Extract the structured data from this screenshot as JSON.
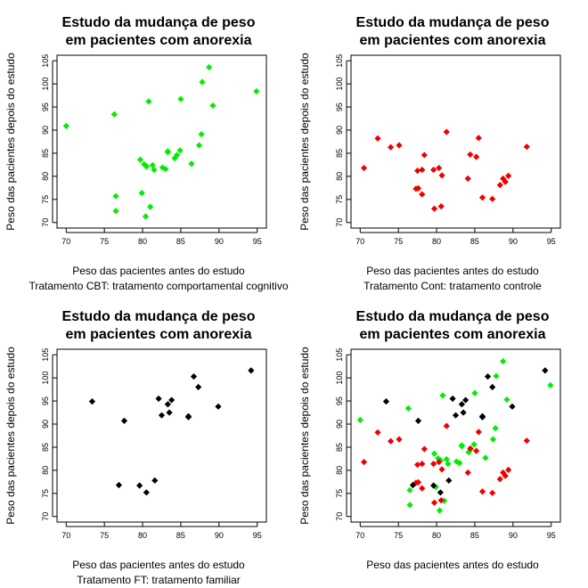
{
  "chart_data": [
    {
      "type": "scatter",
      "title": [
        "Estudo da mudança de peso",
        "em pacientes com anorexia"
      ],
      "xlabel": "Peso das pacientes antes do estudo",
      "sub": "Tratamento CBT: tratamento comportamental cognitivo",
      "ylabel": "Peso das pacientes depois do estudo",
      "xlim": [
        68.8,
        96.2
      ],
      "ylim": [
        68.8,
        106.2
      ],
      "xticks": [
        70,
        75,
        80,
        85,
        90,
        95
      ],
      "yticks": [
        70,
        75,
        80,
        85,
        90,
        95,
        100,
        105
      ],
      "series": [
        {
          "name": "CBT",
          "color": "#00ee00",
          "x": [
            80.5,
            84.9,
            81.5,
            82.6,
            79.9,
            88.7,
            94.9,
            76.3,
            81.0,
            80.5,
            85.0,
            89.2,
            81.3,
            76.5,
            70.0,
            80.4,
            83.3,
            83.0,
            87.7,
            84.2,
            86.4,
            76.5,
            80.2,
            87.8,
            83.3,
            79.7,
            84.5,
            80.8,
            87.4
          ],
          "y": [
            82.2,
            85.6,
            81.4,
            81.9,
            76.4,
            103.6,
            98.4,
            93.4,
            73.4,
            82.1,
            96.7,
            95.3,
            82.4,
            72.5,
            90.9,
            71.3,
            85.4,
            81.6,
            89.1,
            83.9,
            82.7,
            75.7,
            82.6,
            100.4,
            85.2,
            83.6,
            84.6,
            96.2,
            86.7
          ]
        }
      ]
    },
    {
      "type": "scatter",
      "title": [
        "Estudo da mudança de peso",
        "em pacientes com anorexia"
      ],
      "xlabel": "Peso das pacientes antes do estudo",
      "sub": "Tratamento Cont: tratamento controle",
      "ylabel": "Peso das pacientes depois do estudo",
      "xlim": [
        68.8,
        96.2
      ],
      "ylim": [
        68.8,
        106.2
      ],
      "xticks": [
        70,
        75,
        80,
        85,
        90,
        95
      ],
      "yticks": [
        70,
        75,
        80,
        85,
        90,
        95,
        100,
        105
      ],
      "series": [
        {
          "name": "Cont",
          "color": "#ee0000",
          "x": [
            80.7,
            89.4,
            91.8,
            74.0,
            78.1,
            88.3,
            87.3,
            75.1,
            80.6,
            78.4,
            77.6,
            88.7,
            81.3,
            78.1,
            70.5,
            77.3,
            85.2,
            86.0,
            84.1,
            79.7,
            85.5,
            84.4,
            79.6,
            77.5,
            72.3,
            89.0,
            80.3
          ],
          "y": [
            80.2,
            80.1,
            86.4,
            86.3,
            76.1,
            78.1,
            75.1,
            86.7,
            73.5,
            84.6,
            77.4,
            79.5,
            89.6,
            81.4,
            81.8,
            77.3,
            84.2,
            75.4,
            79.5,
            73.0,
            88.3,
            84.7,
            81.4,
            81.2,
            88.2,
            78.8,
            81.8
          ]
        }
      ]
    },
    {
      "type": "scatter",
      "title": [
        "Estudo da mudança de peso",
        "em pacientes com anorexia"
      ],
      "xlabel": "Peso das pacientes antes do estudo",
      "sub": "Tratamento FT: tratamento familiar",
      "ylabel": "Peso das pacientes depois do estudo",
      "xlim": [
        68.8,
        96.2
      ],
      "ylim": [
        68.8,
        106.2
      ],
      "xticks": [
        70,
        75,
        80,
        85,
        90,
        95
      ],
      "yticks": [
        70,
        75,
        80,
        85,
        90,
        95,
        100,
        105
      ],
      "series": [
        {
          "name": "FT",
          "color": "#000000",
          "x": [
            83.8,
            83.3,
            86.0,
            82.5,
            86.7,
            79.6,
            76.9,
            94.2,
            73.4,
            80.5,
            81.6,
            82.1,
            77.6,
            83.5,
            89.9,
            86.0,
            87.3
          ],
          "y": [
            95.2,
            94.3,
            91.5,
            91.9,
            100.3,
            76.7,
            76.8,
            101.6,
            94.9,
            75.2,
            77.8,
            95.5,
            90.7,
            92.5,
            93.8,
            91.7,
            98.0
          ]
        }
      ]
    },
    {
      "type": "scatter",
      "title": [
        "Estudo da mudança de peso",
        "em pacientes com anorexia"
      ],
      "xlabel": "Peso das pacientes antes do estudo",
      "sub": "",
      "ylabel": "Peso das pacientes depois do estudo",
      "xlim": [
        68.8,
        96.2
      ],
      "ylim": [
        68.8,
        106.2
      ],
      "xticks": [
        70,
        75,
        80,
        85,
        90,
        95
      ],
      "yticks": [
        70,
        75,
        80,
        85,
        90,
        95,
        100,
        105
      ],
      "series": [
        {
          "name": "CBT",
          "color": "#00ee00",
          "x": [
            80.5,
            84.9,
            81.5,
            82.6,
            79.9,
            88.7,
            94.9,
            76.3,
            81.0,
            80.5,
            85.0,
            89.2,
            81.3,
            76.5,
            70.0,
            80.4,
            83.3,
            83.0,
            87.7,
            84.2,
            86.4,
            76.5,
            80.2,
            87.8,
            83.3,
            79.7,
            84.5,
            80.8,
            87.4
          ],
          "y": [
            82.2,
            85.6,
            81.4,
            81.9,
            76.4,
            103.6,
            98.4,
            93.4,
            73.4,
            82.1,
            96.7,
            95.3,
            82.4,
            72.5,
            90.9,
            71.3,
            85.4,
            81.6,
            89.1,
            83.9,
            82.7,
            75.7,
            82.6,
            100.4,
            85.2,
            83.6,
            84.6,
            96.2,
            86.7
          ]
        },
        {
          "name": "Cont",
          "color": "#ee0000",
          "x": [
            80.7,
            89.4,
            91.8,
            74.0,
            78.1,
            88.3,
            87.3,
            75.1,
            80.6,
            78.4,
            77.6,
            88.7,
            81.3,
            78.1,
            70.5,
            77.3,
            85.2,
            86.0,
            84.1,
            79.7,
            85.5,
            84.4,
            79.6,
            77.5,
            72.3,
            89.0,
            80.3
          ],
          "y": [
            80.2,
            80.1,
            86.4,
            86.3,
            76.1,
            78.1,
            75.1,
            86.7,
            73.5,
            84.6,
            77.4,
            79.5,
            89.6,
            81.4,
            81.8,
            77.3,
            84.2,
            75.4,
            79.5,
            73.0,
            88.3,
            84.7,
            81.4,
            81.2,
            88.2,
            78.8,
            81.8
          ]
        },
        {
          "name": "FT",
          "color": "#000000",
          "x": [
            83.8,
            83.3,
            86.0,
            82.5,
            86.7,
            79.6,
            76.9,
            94.2,
            73.4,
            80.5,
            81.6,
            82.1,
            77.6,
            83.5,
            89.9,
            86.0,
            87.3
          ],
          "y": [
            95.2,
            94.3,
            91.5,
            91.9,
            100.3,
            76.7,
            76.8,
            101.6,
            94.9,
            75.2,
            77.8,
            95.5,
            90.7,
            92.5,
            93.8,
            91.7,
            98.0
          ]
        }
      ]
    }
  ]
}
